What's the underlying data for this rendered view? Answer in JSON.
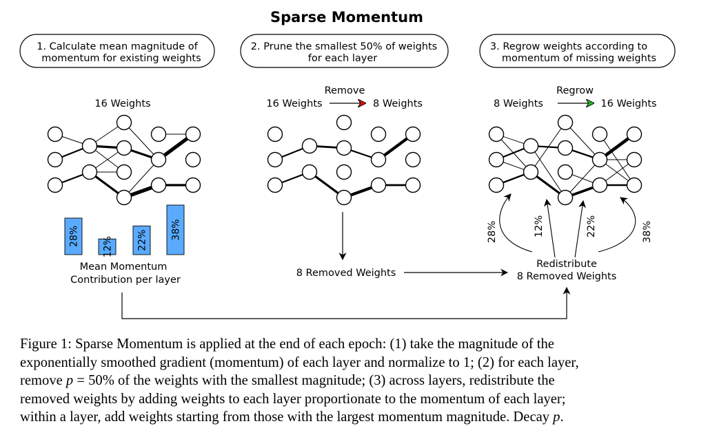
{
  "figure": {
    "title": "Sparse Momentum",
    "steps": [
      {
        "line1": "1. Calculate mean magnitude of",
        "line2": "momentum for existing weights"
      },
      {
        "line1": "2. Prune the smallest 50% of weights",
        "line2": "for each layer"
      },
      {
        "line1": "3. Regrow weights according to",
        "line2": "momentum of missing weights"
      }
    ],
    "panel1": {
      "weights_label": "16 Weights",
      "bars_label_line1": "Mean Momentum",
      "bars_label_line2": "Contribution per layer"
    },
    "panel2": {
      "action": "Remove",
      "from": "16 Weights",
      "to": "8 Weights",
      "removed": "8 Removed Weights"
    },
    "panel3": {
      "action": "Regrow",
      "from": "8 Weights",
      "to": "16 Weights",
      "redistribute_line1": "Redistribute",
      "redistribute_line2": "8 Removed Weights"
    },
    "layer_contributions": [
      {
        "value": 28,
        "label": "28%"
      },
      {
        "value": 12,
        "label": "12%"
      },
      {
        "value": 22,
        "label": "22%"
      },
      {
        "value": 38,
        "label": "38%"
      }
    ],
    "colors": {
      "bar": "#5aabff",
      "remove_arrow": "#e01010",
      "regrow_arrow": "#22bb22"
    }
  },
  "caption": {
    "line1": "Figure 1: Sparse Momentum is applied at the end of each epoch: (1) take the magnitude of the",
    "line2": "exponentially smoothed gradient (momentum) of each layer and normalize to 1; (2) for each layer,",
    "line3_a": "remove ",
    "line3_var": "p",
    "line3_b": " = 50% of the weights with the smallest magnitude; (3) across layers, redistribute the",
    "line4": "removed weights by adding weights to each layer proportionate to the momentum of each layer;",
    "line5_a": "within a layer, add weights starting from those with the largest momentum magnitude. Decay ",
    "line5_var": "p",
    "line5_b": "."
  }
}
